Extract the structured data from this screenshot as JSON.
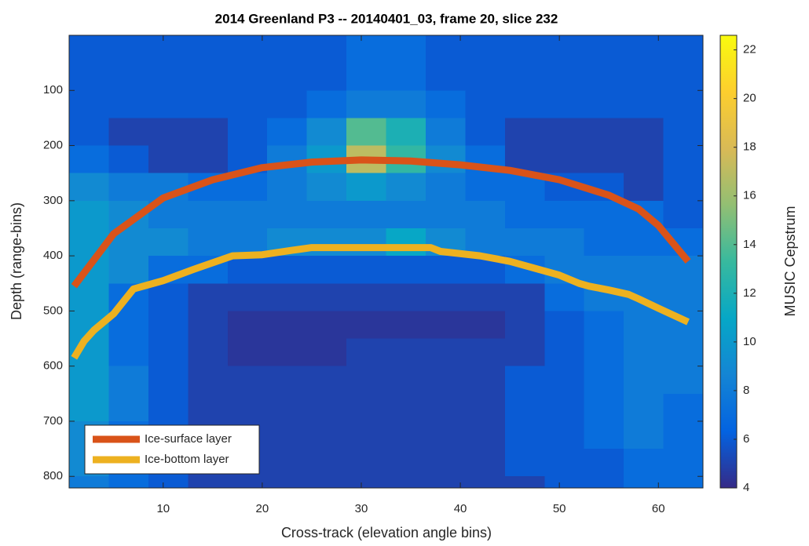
{
  "chart_data": {
    "type": "heatmap",
    "title": "2014 Greenland P3 -- 20140401_03, frame 20, slice 232",
    "x_label": "Cross-track (elevation angle bins)",
    "y_label": "Depth (range-bins)",
    "colorbar_label": "MUSIC Cepstrum",
    "xlim": [
      0.5,
      64.5
    ],
    "xticks": [
      10,
      20,
      30,
      40,
      50,
      60
    ],
    "ylim": [
      0,
      821
    ],
    "yticks": [
      100,
      200,
      300,
      400,
      500,
      600,
      700,
      800
    ],
    "y_direction": "reverse",
    "clim": [
      4,
      22.6
    ],
    "cticks": [
      4,
      6,
      8,
      10,
      12,
      14,
      16,
      18,
      20,
      22
    ],
    "colormap": [
      "#352a87",
      "#0363e1",
      "#1485d4",
      "#06a7c6",
      "#38b99e",
      "#92bf73",
      "#d9ba56",
      "#fcce2e",
      "#f9fb0e"
    ],
    "x_edges": [
      0.5,
      4.5,
      8.5,
      12.5,
      16.5,
      20.5,
      24.5,
      28.5,
      32.5,
      36.5,
      40.5,
      44.5,
      48.5,
      52.5,
      56.5,
      60.5,
      64.5
    ],
    "y_edges": [
      0,
      50,
      100,
      150,
      200,
      250,
      300,
      350,
      400,
      450,
      500,
      550,
      600,
      650,
      700,
      750,
      800,
      821
    ],
    "z": [
      [
        6,
        6,
        6,
        6,
        6,
        6,
        6,
        7,
        7,
        6,
        6,
        6,
        6,
        6,
        6,
        6
      ],
      [
        6,
        6,
        6,
        6,
        6,
        6,
        6,
        7,
        7,
        6,
        6,
        6,
        6,
        6,
        6,
        6
      ],
      [
        6,
        6,
        6,
        6,
        6,
        6,
        7,
        8,
        8,
        7,
        6,
        6,
        6,
        6,
        6,
        6
      ],
      [
        6,
        5,
        5,
        5,
        6,
        7,
        9,
        14,
        12,
        8,
        6,
        5,
        5,
        5,
        5,
        6
      ],
      [
        7,
        6,
        5,
        5,
        6,
        8,
        10,
        17,
        13,
        9,
        7,
        5,
        5,
        5,
        5,
        6
      ],
      [
        9,
        8,
        8,
        7,
        7,
        8,
        9,
        10,
        9,
        8,
        7,
        7,
        6,
        6,
        5,
        6
      ],
      [
        10,
        9,
        8,
        8,
        8,
        8,
        8,
        8,
        8,
        8,
        8,
        7,
        7,
        7,
        7,
        6
      ],
      [
        10,
        9,
        9,
        8,
        8,
        9,
        9,
        9,
        11,
        9,
        8,
        8,
        8,
        7,
        7,
        7
      ],
      [
        10,
        9,
        7,
        7,
        6,
        6,
        6,
        6,
        6,
        6,
        6,
        7,
        8,
        8,
        8,
        8
      ],
      [
        10,
        7,
        6,
        5,
        5,
        5,
        5,
        5,
        5,
        5,
        5,
        5,
        7,
        8,
        8,
        8
      ],
      [
        10,
        7,
        6,
        5,
        4.5,
        4.5,
        4.5,
        4.5,
        4.5,
        4.5,
        4.5,
        5,
        6,
        7,
        8,
        8
      ],
      [
        10,
        7,
        6,
        5,
        4.5,
        4.5,
        4.5,
        5,
        5,
        5,
        5,
        5,
        6,
        7,
        8,
        8
      ],
      [
        10,
        8,
        6,
        5,
        5,
        5,
        5,
        5,
        5,
        5,
        5,
        6,
        6,
        7,
        8,
        8
      ],
      [
        10,
        8,
        6,
        5,
        5,
        5,
        5,
        5,
        5,
        5,
        5,
        6,
        6,
        7,
        8,
        7
      ],
      [
        9,
        7,
        6,
        5,
        5,
        5,
        5,
        5,
        5,
        5,
        5,
        6,
        6,
        7,
        8,
        7
      ],
      [
        9,
        7,
        6,
        5,
        5,
        5,
        5,
        5,
        5,
        5,
        5,
        6,
        6,
        6,
        7,
        7
      ],
      [
        8,
        7,
        6,
        5,
        5,
        5,
        5,
        5,
        5,
        5,
        5,
        5,
        6,
        6,
        7,
        7
      ]
    ],
    "legend": "lower left",
    "series": [
      {
        "name": "Ice-surface layer",
        "color": "#d95319",
        "x": [
          1,
          5,
          10,
          15,
          20,
          25,
          30,
          35,
          40,
          45,
          50,
          55,
          58,
          60,
          63
        ],
        "values": [
          455,
          360,
          295,
          262,
          240,
          230,
          226,
          228,
          235,
          245,
          262,
          290,
          315,
          345,
          410
        ]
      },
      {
        "name": "Ice-bottom layer",
        "color": "#edb120",
        "x": [
          1,
          2,
          3,
          5,
          7,
          10,
          13,
          17,
          20,
          23,
          25,
          30,
          35,
          37,
          38,
          42,
          45,
          48,
          50,
          52,
          53,
          55,
          57,
          58,
          60,
          63
        ],
        "values": [
          585,
          555,
          535,
          505,
          460,
          445,
          425,
          400,
          398,
          390,
          385,
          385,
          385,
          385,
          392,
          400,
          410,
          425,
          435,
          450,
          455,
          462,
          470,
          478,
          495,
          520
        ]
      }
    ]
  }
}
